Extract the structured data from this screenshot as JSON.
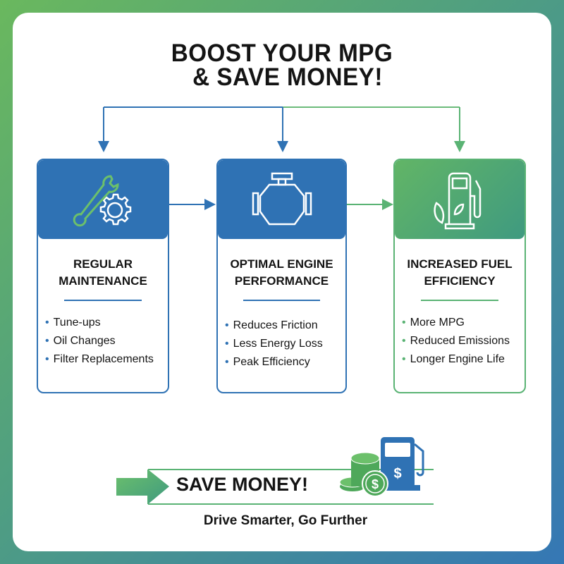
{
  "title": {
    "line1": "BOOST YOUR MPG",
    "line2": "& SAVE MONEY!"
  },
  "colors": {
    "blue": "#2f72b4",
    "green": "#5ab374"
  },
  "cards": [
    {
      "title1": "REGULAR",
      "title2": "MAINTENANCE",
      "icon": "wrench-gear-icon",
      "items": [
        "Tune-ups",
        "Oil Changes",
        "Filter Replacements"
      ]
    },
    {
      "title1": "OPTIMAL ENGINE",
      "title2": "PERFORMANCE",
      "icon": "engine-icon",
      "items": [
        "Reduces Friction",
        "Less Energy Loss",
        "Peak Efficiency"
      ]
    },
    {
      "title1": "INCREASED FUEL",
      "title2": "EFFICIENCY",
      "icon": "fuel-pump-leaf-icon",
      "items": [
        "More MPG",
        "Reduced Emissions",
        "Longer Engine Life"
      ]
    }
  ],
  "banner": {
    "label": "SAVE MONEY!",
    "icon": "coins-fuel-pump-icon"
  },
  "tagline": "Drive Smarter, Go Further"
}
